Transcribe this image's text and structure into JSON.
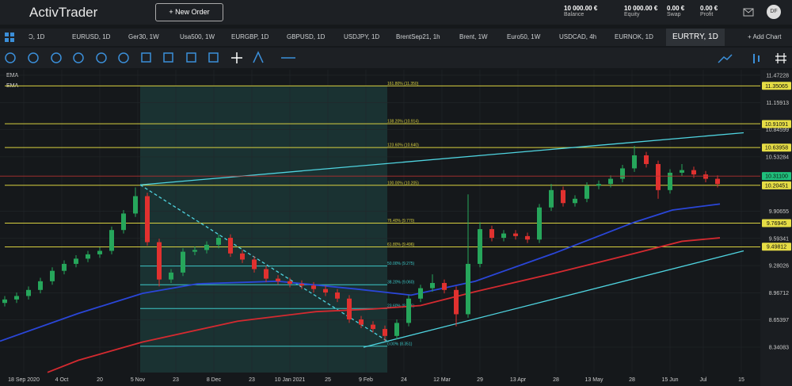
{
  "header": {
    "logo": "ActivTrader",
    "new_order": "+ New Order",
    "stats": [
      {
        "value": "10 000.00 €",
        "label": "Balance"
      },
      {
        "value": "10 000.00 €",
        "label": "Equity"
      },
      {
        "value": "0.00 €",
        "label": "Swap"
      },
      {
        "value": "0.00 €",
        "label": "Profit"
      }
    ],
    "avatar": "DF"
  },
  "tabs": [
    "Ɔ, 1D",
    "EURUSD, 1D",
    "Ger30, 1W",
    "Usa500, 1W",
    "EURGBP, 1D",
    "GBPUSD, 1D",
    "USDJPY, 1D",
    "BrentSep21, 1h",
    "Brent, 1W",
    "Euro50, 1W",
    "USDCAD, 4h",
    "EURNOK, 1D",
    "EURTRY, 1D"
  ],
  "add_chart": "+ Add Chart",
  "chart_data": {
    "type": "candlestick",
    "up_color": "#26a65b",
    "down_color": "#e0312f",
    "xlim": [
      -10,
      310
    ],
    "ylim": [
      8.0486,
      11.536
    ],
    "xticks": [
      {
        "value": 0,
        "label": "18 Sep 2020"
      },
      {
        "value": 16,
        "label": "4 Oct"
      },
      {
        "value": 32,
        "label": "20"
      },
      {
        "value": 48,
        "label": "5 Nov"
      },
      {
        "value": 64,
        "label": "23"
      },
      {
        "value": 80,
        "label": "8 Dec"
      },
      {
        "value": 96,
        "label": "23"
      },
      {
        "value": 112,
        "label": "10 Jan 2021"
      },
      {
        "value": 128,
        "label": "25"
      },
      {
        "value": 144,
        "label": "9 Feb"
      },
      {
        "value": 160,
        "label": "24"
      },
      {
        "value": 176,
        "label": "12 Mar"
      },
      {
        "value": 192,
        "label": "29"
      },
      {
        "value": 208,
        "label": "13 Apr"
      },
      {
        "value": 224,
        "label": "28"
      },
      {
        "value": 240,
        "label": "13 May"
      },
      {
        "value": 256,
        "label": "28"
      },
      {
        "value": 272,
        "label": "15 Jun"
      },
      {
        "value": 286,
        "label": "Jul"
      },
      {
        "value": 302,
        "label": "15"
      }
    ],
    "yticks": [
      11.47228,
      11.15913,
      10.84599,
      10.53284,
      9.90655,
      9.59341,
      9.28026,
      8.96712,
      8.65397,
      8.34083
    ],
    "candles": [
      [
        -8,
        8.85,
        8.93,
        8.81,
        8.89
      ],
      [
        -3,
        8.89,
        8.97,
        8.85,
        8.93
      ],
      [
        2,
        8.93,
        9.04,
        8.89,
        9.0
      ],
      [
        7,
        9.0,
        9.14,
        8.96,
        9.1
      ],
      [
        12,
        9.1,
        9.26,
        9.06,
        9.22
      ],
      [
        17,
        9.22,
        9.34,
        9.18,
        9.3
      ],
      [
        22,
        9.3,
        9.4,
        9.26,
        9.36
      ],
      [
        27,
        9.36,
        9.45,
        9.32,
        9.41
      ],
      [
        32,
        9.41,
        9.49,
        9.37,
        9.45
      ],
      [
        37,
        9.45,
        9.73,
        9.41,
        9.69
      ],
      [
        42,
        9.69,
        9.92,
        9.65,
        9.88
      ],
      [
        47,
        9.88,
        10.18,
        9.84,
        10.08
      ],
      [
        52,
        10.08,
        10.12,
        9.51,
        9.55
      ],
      [
        57,
        9.55,
        9.59,
        9.04,
        9.12
      ],
      [
        62,
        9.12,
        9.24,
        9.08,
        9.2
      ],
      [
        67,
        9.2,
        9.48,
        9.16,
        9.44
      ],
      [
        72,
        9.44,
        9.5,
        9.4,
        9.46
      ],
      [
        77,
        9.46,
        9.56,
        9.42,
        9.52
      ],
      [
        82,
        9.52,
        9.64,
        9.48,
        9.6
      ],
      [
        87,
        9.6,
        9.64,
        9.38,
        9.42
      ],
      [
        92,
        9.42,
        9.46,
        9.31,
        9.35
      ],
      [
        97,
        9.35,
        9.39,
        9.2,
        9.24
      ],
      [
        102,
        9.24,
        9.28,
        9.09,
        9.13
      ],
      [
        107,
        9.13,
        9.17,
        9.06,
        9.1
      ],
      [
        112,
        9.1,
        9.14,
        9.03,
        9.07
      ],
      [
        117,
        9.07,
        9.11,
        9.01,
        9.05
      ],
      [
        122,
        9.05,
        9.09,
        8.97,
        9.01
      ],
      [
        127,
        9.01,
        9.05,
        8.93,
        8.97
      ],
      [
        132,
        8.97,
        9.01,
        8.86,
        8.9
      ],
      [
        137,
        8.9,
        8.94,
        8.62,
        8.66
      ],
      [
        142,
        8.66,
        8.7,
        8.56,
        8.6
      ],
      [
        147,
        8.6,
        8.64,
        8.51,
        8.55
      ],
      [
        152,
        8.55,
        8.59,
        8.41,
        8.47
      ],
      [
        157,
        8.47,
        8.66,
        8.43,
        8.62
      ],
      [
        162,
        8.62,
        8.94,
        8.58,
        8.9
      ],
      [
        167,
        8.9,
        9.06,
        8.86,
        9.02
      ],
      [
        172,
        9.02,
        9.18,
        8.98,
        9.08
      ],
      [
        177,
        9.08,
        9.12,
        8.96,
        9.0
      ],
      [
        182,
        9.0,
        9.04,
        8.58,
        8.72
      ],
      [
        187,
        8.72,
        10.1,
        8.68,
        9.3
      ],
      [
        192,
        9.3,
        9.78,
        9.26,
        9.7
      ],
      [
        197,
        9.7,
        9.74,
        9.56,
        9.6
      ],
      [
        202,
        9.6,
        9.69,
        9.56,
        9.65
      ],
      [
        207,
        9.65,
        9.69,
        9.58,
        9.62
      ],
      [
        212,
        9.62,
        9.66,
        9.54,
        9.58
      ],
      [
        217,
        9.58,
        9.99,
        9.54,
        9.95
      ],
      [
        222,
        9.95,
        10.22,
        9.91,
        10.15
      ],
      [
        227,
        10.15,
        10.19,
        9.96,
        10.0
      ],
      [
        232,
        10.0,
        10.09,
        9.96,
        10.05
      ],
      [
        237,
        10.05,
        10.24,
        10.01,
        10.2
      ],
      [
        242,
        10.2,
        10.26,
        10.16,
        10.22
      ],
      [
        247,
        10.22,
        10.32,
        10.18,
        10.28
      ],
      [
        252,
        10.28,
        10.44,
        10.24,
        10.4
      ],
      [
        257,
        10.4,
        10.66,
        10.36,
        10.55
      ],
      [
        262,
        10.55,
        10.59,
        10.41,
        10.45
      ],
      [
        267,
        10.45,
        10.49,
        10.05,
        10.15
      ],
      [
        272,
        10.15,
        10.39,
        10.11,
        10.35
      ],
      [
        277,
        10.35,
        10.45,
        10.31,
        10.38
      ],
      [
        282,
        10.38,
        10.42,
        10.29,
        10.33
      ],
      [
        287,
        10.33,
        10.37,
        10.24,
        10.28
      ],
      [
        292,
        10.28,
        10.32,
        10.18,
        10.22
      ]
    ],
    "series": [
      {
        "name": "EMA",
        "color": "#2a46d8",
        "x": [
          -10,
          23,
          50,
          73,
          107,
          140,
          163,
          190,
          223,
          257,
          273,
          293
        ],
        "values": [
          8.41,
          8.73,
          8.96,
          9.07,
          9.1,
          9.01,
          8.94,
          9.1,
          9.42,
          9.78,
          9.92,
          9.99
        ]
      },
      {
        "name": "EMA",
        "color": "#d42a30",
        "x": [
          10,
          23,
          50,
          90,
          123,
          147,
          167,
          190,
          223,
          257,
          277,
          293
        ],
        "values": [
          8.05,
          8.19,
          8.4,
          8.64,
          8.75,
          8.78,
          8.82,
          8.98,
          9.19,
          9.42,
          9.56,
          9.6
        ]
      }
    ],
    "trend_lines": [
      {
        "x": [
          49,
          303
        ],
        "values": [
          10.21,
          10.81
        ],
        "dashed": false
      },
      {
        "x": [
          49,
          153
        ],
        "values": [
          10.21,
          8.41
        ],
        "dashed": true
      },
      {
        "x": [
          143,
          303
        ],
        "values": [
          8.34,
          9.45
        ],
        "dashed": false
      }
    ],
    "fib_x": [
      49,
      153
    ],
    "fib_levels": [
      {
        "value": 11.35,
        "label": "161.80% (11.350)",
        "color": "#d8d040",
        "full": true
      },
      {
        "value": 10.914,
        "label": "138.20% (10.914)",
        "color": "#d8d040",
        "full": true
      },
      {
        "value": 10.64,
        "label": "123.60% (10.640)",
        "color": "#d8d040",
        "full": true
      },
      {
        "value": 10.205,
        "label": "100.00% (10.205)",
        "color": "#d8d040",
        "full": true
      },
      {
        "value": 9.77,
        "label": "76.40% (9.770)",
        "color": "#d8d040",
        "full": true
      },
      {
        "value": 9.496,
        "label": "61.80% (9.496)",
        "color": "#d8d040",
        "full": true
      },
      {
        "value": 9.275,
        "label": "50.00% (9.275)",
        "color": "#3cc8c8",
        "full": false
      },
      {
        "value": 9.06,
        "label": "38.20% (9.060)",
        "color": "#3cc8c8",
        "full": false
      },
      {
        "value": 8.786,
        "label": "23.60% (8.786)",
        "color": "#3cc8c8",
        "full": false
      },
      {
        "value": 8.351,
        "label": "0.00% (8.351)",
        "color": "#3cc8c8",
        "full": false
      }
    ],
    "price_labels": [
      {
        "value": 11.35065,
        "color": "#e6dd45"
      },
      {
        "value": 10.91091,
        "color": "#e6dd45"
      },
      {
        "value": 10.63958,
        "color": "#e6dd45"
      },
      {
        "value": 10.311,
        "label": "10.31100",
        "color": "#1fc07c"
      },
      {
        "value": 10.20451,
        "color": "#e6dd45"
      },
      {
        "value": 9.76945,
        "color": "#e6dd45"
      },
      {
        "value": 9.49812,
        "color": "#e6dd45"
      }
    ]
  }
}
